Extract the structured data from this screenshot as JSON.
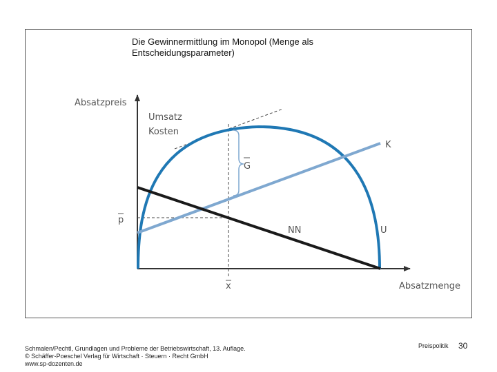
{
  "slide": {
    "title_line1": "Die Gewinnermittlung im Monopol (Menge als",
    "title_line2": "Entscheidungsparameter)",
    "credit_line1": "Schmalen/Pechtl, Grundlagen und Probleme der Betriebswirtschaft, 13. Auflage.",
    "credit_line2": "© Schäffer-Poeschel Verlag für Wirtschaft · Steuern · Recht GmbH",
    "credit_line3": "www.sp-dozenten.de",
    "section_label": "Preispolitik",
    "page_number": "30"
  },
  "diagram": {
    "y_axis_label": "Absatzpreis",
    "x_axis_label": "Absatzmenge",
    "curve_label_line1": "Umsatz",
    "curve_label_line2": "Kosten",
    "label_K": "K",
    "label_U": "U",
    "label_NN": "NN",
    "label_G": "G",
    "label_p": "p",
    "label_x": "x"
  },
  "colors": {
    "revenue_curve": "#1f78b4",
    "cost_line": "#7fa8d0",
    "demand_line": "#1a1a1a",
    "axis": "#333333",
    "text": "#555555"
  }
}
